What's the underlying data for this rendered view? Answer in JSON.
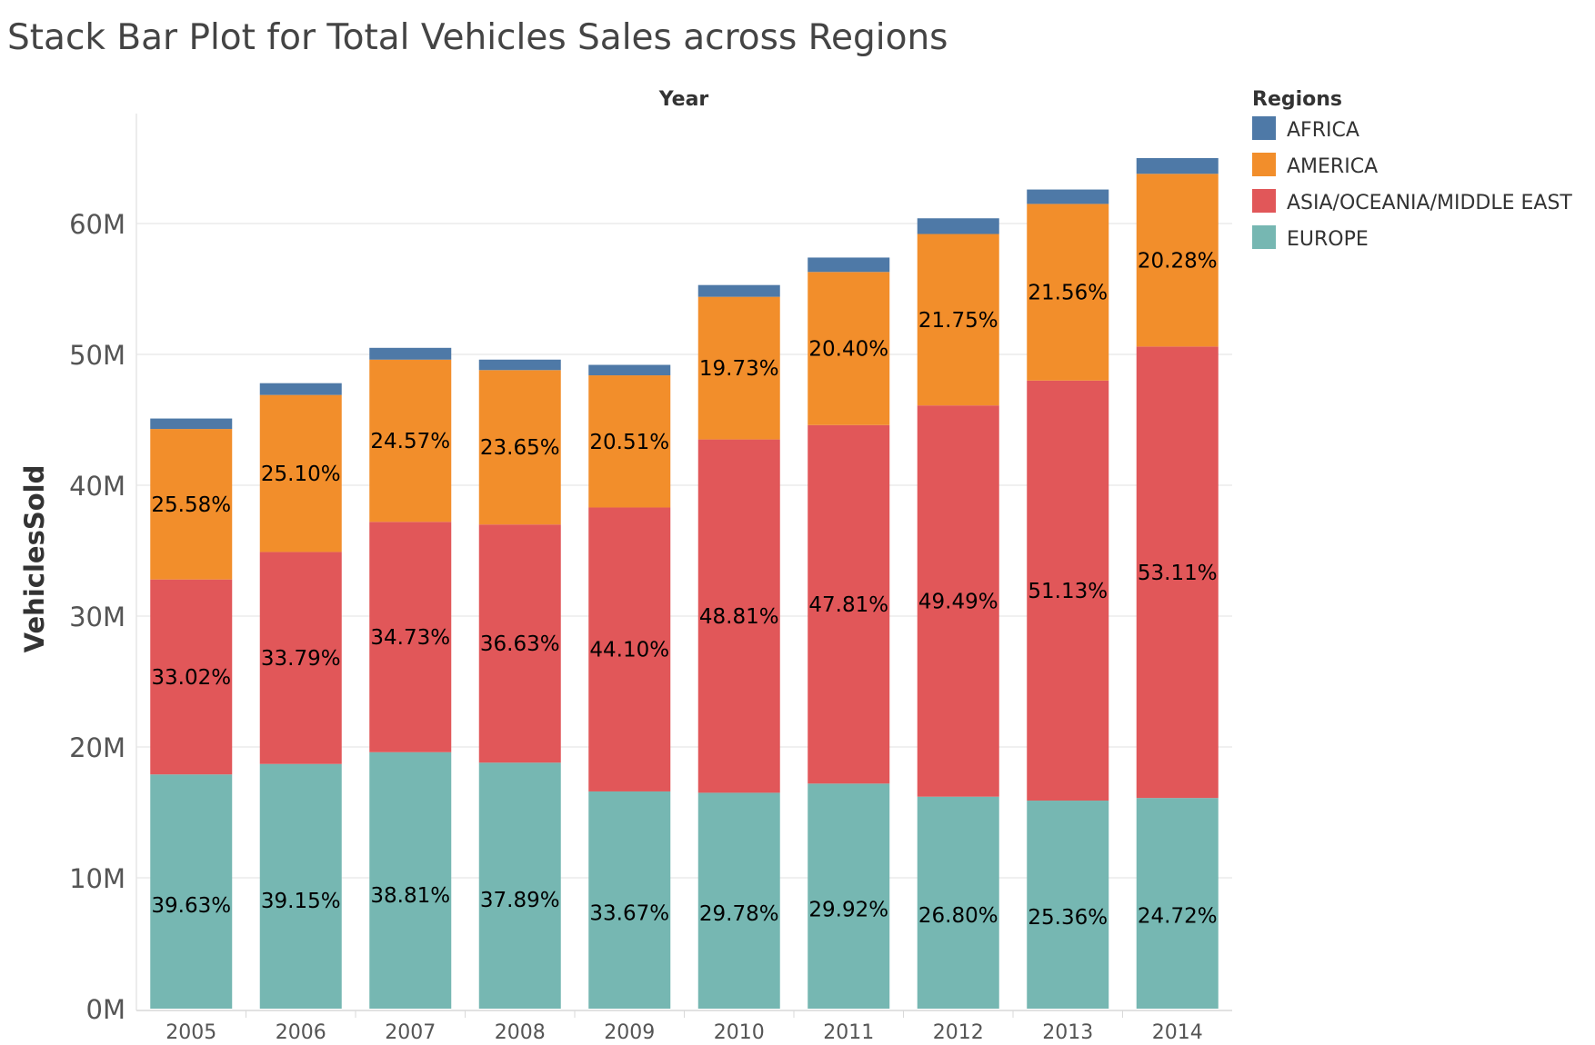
{
  "chart_data": {
    "type": "bar",
    "stacked": true,
    "title": "Stack Bar Plot for Total Vehicles Sales across Regions",
    "xlabel": "Year",
    "ylabel": "VehiclesSold",
    "ylim": [
      0,
      70000000
    ],
    "y_ticks": [
      0,
      10000000,
      20000000,
      30000000,
      40000000,
      50000000,
      60000000
    ],
    "y_tick_labels": [
      "0M",
      "10M",
      "20M",
      "30M",
      "40M",
      "50M",
      "60M"
    ],
    "grid": true,
    "legend_title": "Regions",
    "legend_position": "top-right",
    "categories": [
      "2005",
      "2006",
      "2007",
      "2008",
      "2009",
      "2010",
      "2011",
      "2012",
      "2013",
      "2014"
    ],
    "series": [
      {
        "name": "EUROPE",
        "color": "#76b7b2",
        "values": [
          17900000,
          18700000,
          19600000,
          18800000,
          16600000,
          16500000,
          17200000,
          16200000,
          15900000,
          16100000
        ],
        "labels": [
          "39.63%",
          "39.15%",
          "38.81%",
          "37.89%",
          "33.67%",
          "29.78%",
          "29.92%",
          "26.80%",
          "25.36%",
          "24.72%"
        ]
      },
      {
        "name": "ASIA/OCEANIA/MIDDLE EAST",
        "color": "#e15759",
        "values": [
          14900000,
          16200000,
          17600000,
          18200000,
          21700000,
          27000000,
          27400000,
          29900000,
          32100000,
          34500000
        ],
        "labels": [
          "33.02%",
          "33.79%",
          "34.73%",
          "36.63%",
          "44.10%",
          "48.81%",
          "47.81%",
          "49.49%",
          "51.13%",
          "53.11%"
        ]
      },
      {
        "name": "AMERICA",
        "color": "#f28e2b",
        "values": [
          11500000,
          12000000,
          12400000,
          11800000,
          10100000,
          10900000,
          11700000,
          13100000,
          13500000,
          13200000
        ],
        "labels": [
          "25.58%",
          "25.10%",
          "24.57%",
          "23.65%",
          "20.51%",
          "19.73%",
          "20.40%",
          "21.75%",
          "21.56%",
          "20.28%"
        ]
      },
      {
        "name": "AFRICA",
        "color": "#4e79a7",
        "values": [
          800000,
          900000,
          900000,
          800000,
          800000,
          900000,
          1100000,
          1200000,
          1100000,
          1200000
        ],
        "labels": [
          "",
          "",
          "",
          "",
          "",
          "",
          "",
          "",
          "",
          ""
        ]
      }
    ]
  },
  "legend_order": [
    "AFRICA",
    "AMERICA",
    "ASIA/OCEANIA/MIDDLE EAST",
    "EUROPE"
  ]
}
